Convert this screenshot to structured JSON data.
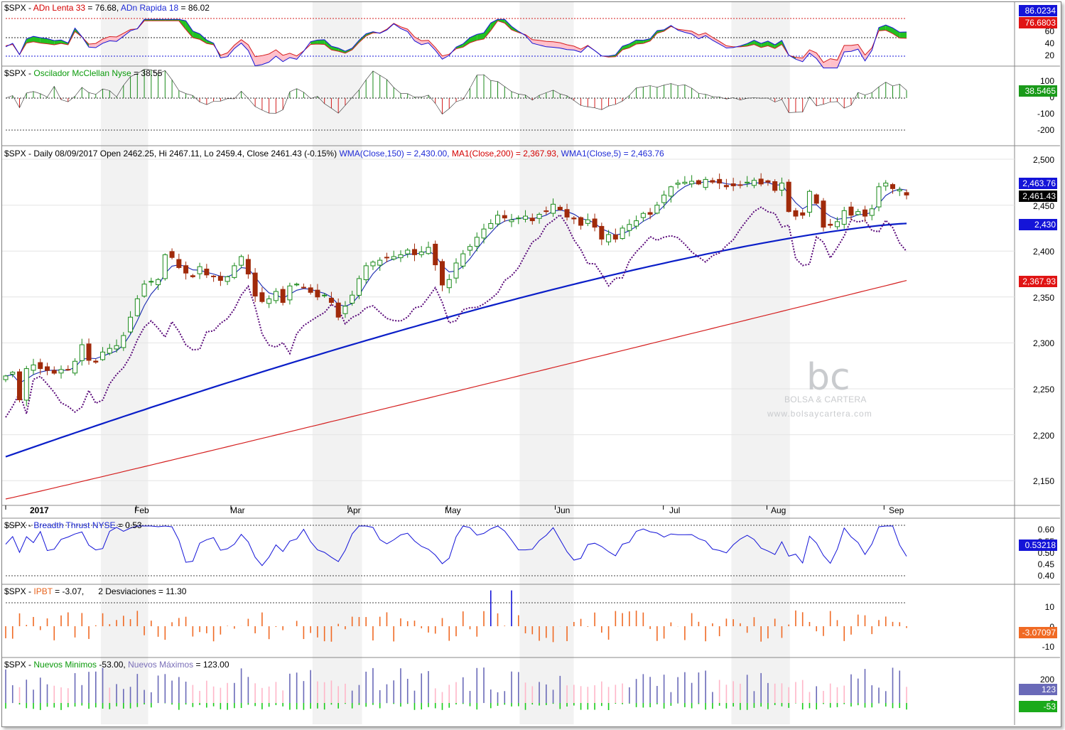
{
  "symbol": "$SPX",
  "panels": {
    "adn": {
      "symbol": "$SPX",
      "l1": "ADn Lenta 33",
      "v1": "76.68",
      "l2": "ADn Rapida 18",
      "v2": "86.02",
      "axis": [
        "60",
        "40",
        "20"
      ],
      "tag1": "86.0234",
      "tag2": "76.6803"
    },
    "mcc": {
      "symbol": "$SPX",
      "l1": "Oscilador McClellan Nyse",
      "v1": "38.55",
      "axis": [
        "100",
        "0",
        "-100",
        "-200"
      ],
      "tag1": "38.5465"
    },
    "price": {
      "prefix": "$SPX - Daily 08/09/2017 Open 2462.25, Hi 2467.11, Lo 2459.4, Close 2461.43 (-0.15%)",
      "wma150": "WMA(Close,150) = 2,430.00,",
      "ma200": "MA1(Close,200) = 2,367.93,",
      "wma5": "WMA1(Close,5) = 2,463.76",
      "axis": [
        "2,500",
        "2,450",
        "2,400",
        "2,350",
        "2,300",
        "2,250",
        "2,200",
        "2,150"
      ],
      "tag_wma5": "2,463.76",
      "tag_close": "2,461.43",
      "tag_wma150": "2,430",
      "tag_ma200": "2,367.93"
    },
    "bt": {
      "symbol": "$SPX",
      "l1": "Breadth Thrust NYSE",
      "v1": "0.53",
      "axis": [
        "0.60",
        "0.55",
        "0.50",
        "0.45",
        "0.40"
      ],
      "tag1": "0.53218"
    },
    "ipbt": {
      "symbol": "$SPX",
      "l1": "IPBT",
      "v1": "-3.07,",
      "l2": "2 Desviaciones",
      "v2": "11.30",
      "axis": [
        "10",
        "0",
        "-10"
      ],
      "tag1": "-3.07097"
    },
    "nm": {
      "symbol": "$SPX",
      "l1": "Nuevos Minimos",
      "v1": "-53.00,",
      "l2": "Nuevos Máximos",
      "v2": "123.00",
      "axis": [
        "200",
        "0"
      ],
      "tag1": "123",
      "tag2": "-53"
    }
  },
  "months": [
    "2017",
    "Feb",
    "Mar",
    "Apr",
    "May",
    "Jun",
    "Jul",
    "Aug",
    "Sep"
  ],
  "watermark": {
    "logo": "bc",
    "name": "BOLSA & CARTERA",
    "url": "www.bolsaycartera.com"
  },
  "colors": {
    "candle_up": "#1a8a1a",
    "candle_down": "#a02a0a",
    "wma150": "#0a1ec8",
    "ma200": "#d41e1e",
    "wma5": "#1a2ab0",
    "pband": "#5a0a7a",
    "fill_pink": "#ffc0cb",
    "fill_green": "#22c022"
  },
  "chart_data": {
    "type": "candlestick",
    "title": "$SPX - Daily 08/09/2017",
    "last": {
      "date": "08/09/2017",
      "open": 2462.25,
      "high": 2467.11,
      "low": 2459.4,
      "close": 2461.43,
      "change_pct": -0.15
    },
    "months": [
      "2017",
      "Feb",
      "Mar",
      "Apr",
      "May",
      "Jun",
      "Jul",
      "Aug",
      "Sep"
    ],
    "close_approx": [
      2264,
      2268,
      2238,
      2272,
      2276,
      2272,
      2270,
      2267,
      2271,
      2271,
      2280,
      2298,
      2281,
      2279,
      2290,
      2294,
      2297,
      2308,
      2328,
      2348,
      2364,
      2367,
      2369,
      2396,
      2393,
      2382,
      2376,
      2372,
      2383,
      2374,
      2372,
      2368,
      2372,
      2384,
      2394,
      2375,
      2351,
      2345,
      2348,
      2356,
      2344,
      2362,
      2364,
      2360,
      2355,
      2350,
      2352,
      2344,
      2328,
      2340,
      2352,
      2370,
      2384,
      2388,
      2390,
      2393,
      2394,
      2396,
      2401,
      2396,
      2399,
      2404,
      2385,
      2363,
      2369,
      2387,
      2397,
      2405,
      2415,
      2424,
      2430,
      2439,
      2436,
      2434,
      2436,
      2438,
      2433,
      2440,
      2443,
      2451,
      2445,
      2437,
      2435,
      2428,
      2434,
      2426,
      2413,
      2418,
      2413,
      2425,
      2429,
      2433,
      2441,
      2440,
      2450,
      2461,
      2470,
      2474,
      2475,
      2476,
      2473,
      2478,
      2475,
      2474,
      2470,
      2471,
      2472,
      2475,
      2477,
      2473,
      2475,
      2466,
      2474,
      2443,
      2438,
      2439,
      2465,
      2452,
      2426,
      2428,
      2432,
      2444,
      2439,
      2443,
      2438,
      2446,
      2470,
      2474,
      2468,
      2467,
      2461
    ],
    "series_last": [
      {
        "name": "WMA(Close,150)",
        "last": 2430.0
      },
      {
        "name": "MA1(Close,200)",
        "last": 2367.93
      },
      {
        "name": "WMA1(Close,5)",
        "last": 2463.76
      }
    ],
    "indicators": {
      "ADn Lenta 33": 76.68,
      "ADn Rapida 18": 86.02,
      "Oscilador McClellan Nyse": 38.55,
      "Breadth Thrust NYSE": 0.53,
      "IPBT": -3.07,
      "2 Desviaciones": 11.3,
      "Nuevos Minimos": -53.0,
      "Nuevos Máximos": 123.0
    },
    "ylim_price": [
      2130,
      2510
    ]
  }
}
